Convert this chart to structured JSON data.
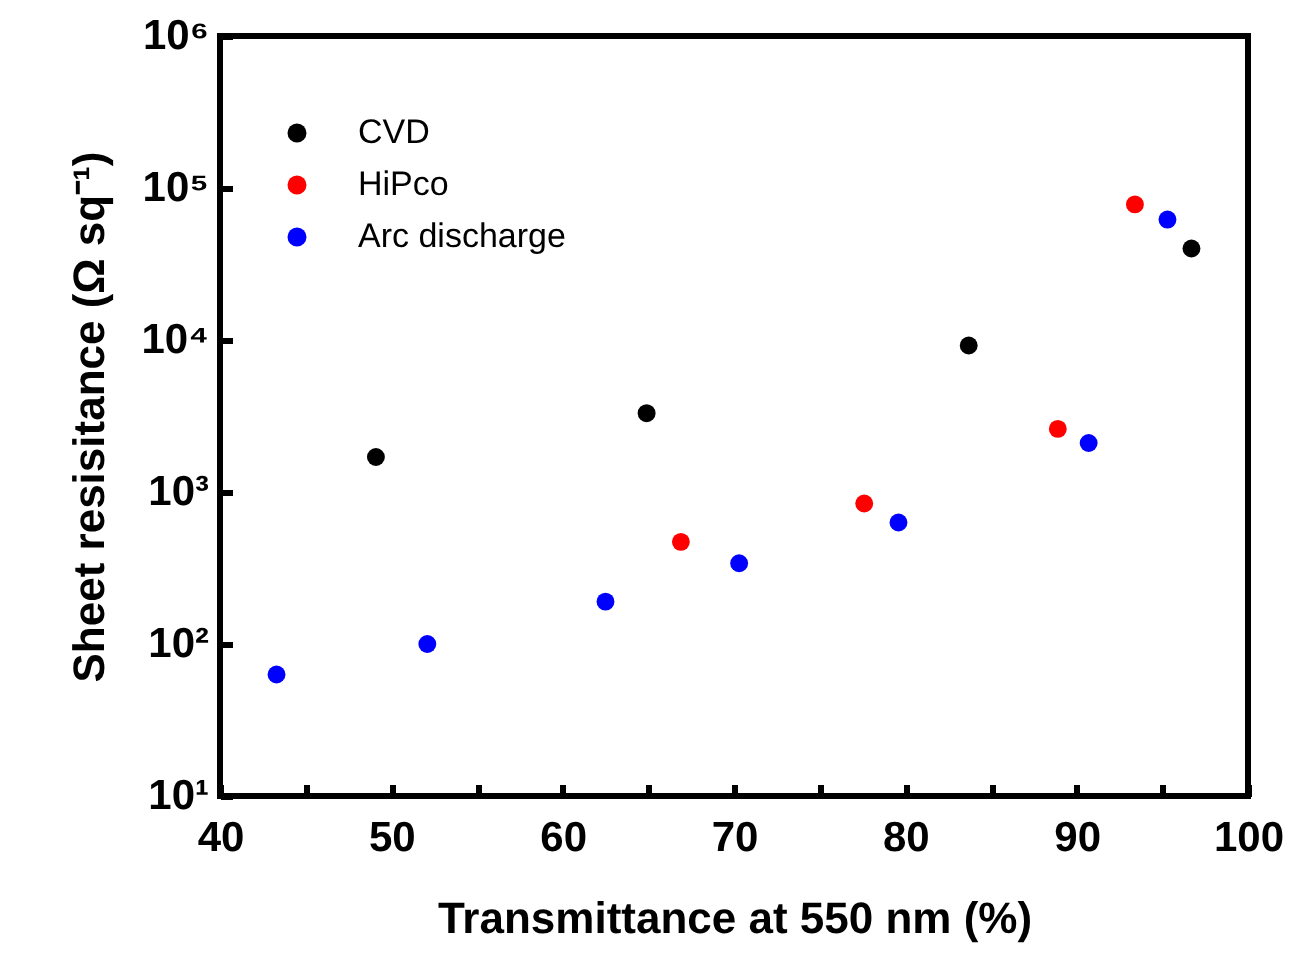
{
  "chart_data": {
    "type": "scatter",
    "xlabel": "Transmittance at 550 nm (%)",
    "ylabel": "Sheet resisitance (Ω sq⁻¹)",
    "xlim": [
      40,
      100
    ],
    "xticks": [
      40,
      {
        "value": 45,
        "label": null
      },
      50,
      {
        "value": 55,
        "label": null
      },
      60,
      {
        "value": 65,
        "label": null
      },
      70,
      {
        "value": 75,
        "label": null
      },
      80,
      {
        "value": 85,
        "label": null
      },
      90,
      {
        "value": 95,
        "label": null
      },
      100
    ],
    "ylim": [
      10,
      1000000
    ],
    "yticks": [
      {
        "value": 10,
        "label": "10¹"
      },
      {
        "value": 100,
        "label": "10²"
      },
      {
        "value": 1000,
        "label": "10³"
      },
      {
        "value": 10000,
        "label": "10⁴"
      },
      {
        "value": 100000,
        "label": "10⁵"
      },
      {
        "value": 1000000,
        "label": "10⁶"
      }
    ],
    "log": "y",
    "grid": false,
    "legend": "top left",
    "marker": "circle",
    "series": [
      {
        "name": "CVD",
        "color": "#000000",
        "x": [
          49.1,
          64.9,
          83.7,
          96.7
        ],
        "values": [
          1700,
          3300,
          9200,
          40000
        ]
      },
      {
        "name": "HiPco",
        "color": "#ff0000",
        "x": [
          66.9,
          77.6,
          88.9,
          93.4
        ],
        "values": [
          470,
          840,
          2600,
          78000
        ]
      },
      {
        "name": "Arc discharge",
        "color": "#0000ff",
        "x": [
          43.3,
          52.1,
          62.5,
          70.3,
          79.6,
          90.7,
          95.3
        ],
        "values": [
          63,
          100,
          190,
          340,
          630,
          2100,
          62000
        ]
      }
    ]
  }
}
